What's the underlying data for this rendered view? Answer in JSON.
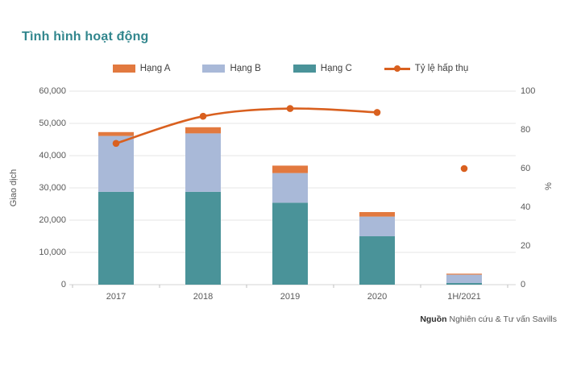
{
  "title": "Tình hình hoạt động",
  "legend": [
    {
      "label": "Hạng A",
      "type": "swatch",
      "color": "#E2793F"
    },
    {
      "label": "Hạng B",
      "type": "swatch",
      "color": "#A9B9D8"
    },
    {
      "label": "Hạng C",
      "type": "swatch",
      "color": "#4A9399"
    },
    {
      "label": "Tỷ lệ hấp thụ",
      "type": "line",
      "color": "#D9601F"
    }
  ],
  "source": {
    "prefix": "Nguồn",
    "text": "Nghiên cứu & Tư vấn Savills"
  },
  "colors": {
    "title": "#31868D",
    "gridline": "#E4E4E4",
    "axis_line": "#D6D6D6",
    "tick_mark": "#BFBFBF",
    "axis_text": "#595959"
  },
  "chart_data": {
    "type": "bar",
    "subtype": "stacked-bars-with-dual-axis-line",
    "categories": [
      "2017",
      "2018",
      "2019",
      "2020",
      "1H/2021"
    ],
    "series": [
      {
        "name": "Hạng A",
        "kind": "bar",
        "color": "#E2793F",
        "values": [
          1200,
          1900,
          2300,
          1400,
          300
        ]
      },
      {
        "name": "Hạng B",
        "kind": "bar",
        "color": "#A9B9D8",
        "values": [
          17300,
          18100,
          9200,
          6100,
          2600
        ]
      },
      {
        "name": "Hạng C",
        "kind": "bar",
        "color": "#4A9399",
        "values": [
          28800,
          28800,
          25400,
          15000,
          500
        ]
      },
      {
        "name": "Tỷ lệ hấp thụ",
        "kind": "line",
        "axis": "right",
        "color": "#D9601F",
        "values": [
          73,
          87,
          91,
          89,
          60
        ],
        "line_connects_first_n": 4
      }
    ],
    "stack_order_bottom_to_top": [
      "Hạng C",
      "Hạng B",
      "Hạng A"
    ],
    "left_axis": {
      "label": "Giao dịch",
      "min": 0,
      "max": 60000,
      "step": 10000,
      "tick_labels": [
        "0",
        "10,000",
        "20,000",
        "30,000",
        "40,000",
        "50,000",
        "60,000"
      ]
    },
    "right_axis": {
      "label": "%",
      "min": 0,
      "max": 100,
      "step": 20,
      "tick_labels": [
        "0",
        "20",
        "40",
        "60",
        "80",
        "100"
      ]
    },
    "grid": "horizontal",
    "legend_position": "top-center"
  }
}
